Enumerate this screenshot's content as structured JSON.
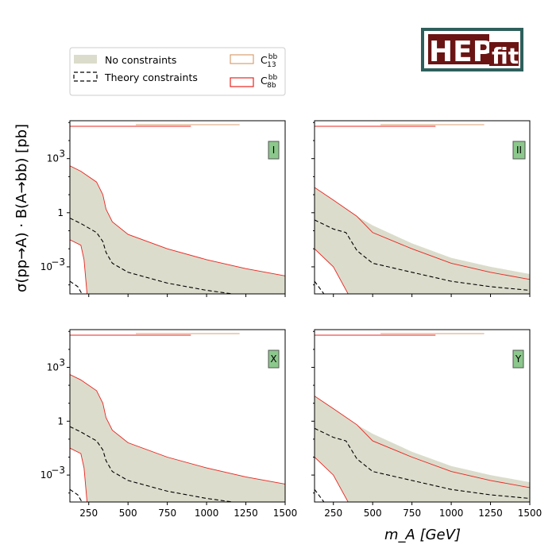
{
  "logo": {
    "part1": "HEP",
    "part2": "fit"
  },
  "legend": {
    "items": [
      {
        "key": "none",
        "label": "No constraints",
        "color": "#dcdccc"
      },
      {
        "key": "theory",
        "label": "Theory constraints",
        "color": "#000000"
      },
      {
        "key": "c13",
        "label": "C",
        "sup": "bb",
        "sub": "13",
        "color": "#d9a070"
      },
      {
        "key": "c8b",
        "label": "C",
        "sup": "bb",
        "sub": "8b",
        "color": "#e8251f"
      }
    ]
  },
  "chart_data": {
    "type": "area",
    "xlabel": "m_A [GeV]",
    "ylabel": "σ(pp→A) · B(A→bb) [pb]",
    "xlim": [
      130,
      1500
    ],
    "ylim_log10": [
      -4.5,
      5.1
    ],
    "xticks": [
      250,
      500,
      750,
      1000,
      1250,
      1500
    ],
    "yticks": [
      {
        "label": "10",
        "exp": "3",
        "log": 3
      },
      {
        "label": "1",
        "exp": "",
        "log": 0
      },
      {
        "label": "10",
        "exp": "−3",
        "log": -3
      }
    ],
    "colors": {
      "band": "#dcdccc",
      "theory": "#000000",
      "c13": "#d9a070",
      "c8b": "#e8251f",
      "badge": "#8cc88c"
    },
    "panels": [
      {
        "label": "I",
        "band_upper": [
          [
            130,
            2.6
          ],
          [
            200,
            2.3
          ],
          [
            300,
            1.7
          ],
          [
            340,
            1.0
          ],
          [
            360,
            0.2
          ],
          [
            400,
            -0.5
          ],
          [
            500,
            -1.2
          ],
          [
            750,
            -2.0
          ],
          [
            1000,
            -2.6
          ],
          [
            1250,
            -3.1
          ],
          [
            1500,
            -3.5
          ]
        ],
        "band_lower": [
          [
            130,
            -1.5
          ],
          [
            200,
            -1.8
          ],
          [
            220,
            -2.6
          ],
          [
            240,
            -4.6
          ]
        ],
        "theory_upper": [
          [
            130,
            -0.3
          ],
          [
            200,
            -0.6
          ],
          [
            300,
            -1.1
          ],
          [
            340,
            -1.6
          ],
          [
            360,
            -2.2
          ],
          [
            400,
            -2.8
          ],
          [
            500,
            -3.3
          ],
          [
            750,
            -3.9
          ],
          [
            1000,
            -4.3
          ],
          [
            1250,
            -4.6
          ],
          [
            1400,
            -5.2
          ],
          [
            1500,
            -5.4
          ]
        ],
        "theory_lower": [
          [
            130,
            -3.8
          ],
          [
            180,
            -4.1
          ],
          [
            220,
            -4.7
          ],
          [
            240,
            -5.3
          ],
          [
            260,
            -6.2
          ],
          [
            300,
            -6.8
          ]
        ],
        "c8b_upper": [
          [
            130,
            2.6
          ],
          [
            200,
            2.3
          ],
          [
            300,
            1.7
          ],
          [
            340,
            1.0
          ],
          [
            360,
            0.2
          ],
          [
            400,
            -0.5
          ],
          [
            500,
            -1.2
          ],
          [
            750,
            -2.0
          ],
          [
            1000,
            -2.6
          ],
          [
            1250,
            -3.1
          ],
          [
            1500,
            -3.5
          ]
        ],
        "c8b_lower": [
          [
            130,
            -1.5
          ],
          [
            200,
            -1.8
          ],
          [
            220,
            -2.6
          ],
          [
            240,
            -4.6
          ]
        ],
        "topbar_c8b": [
          130,
          900
        ],
        "topbar_c13": [
          550,
          1210
        ]
      },
      {
        "label": "II",
        "band_upper": [
          [
            130,
            1.4
          ],
          [
            250,
            0.7
          ],
          [
            400,
            -0.2
          ],
          [
            500,
            -0.7
          ],
          [
            750,
            -1.7
          ],
          [
            1000,
            -2.5
          ],
          [
            1250,
            -3.0
          ],
          [
            1500,
            -3.4
          ]
        ],
        "band_lower": [
          [
            130,
            -2.0
          ],
          [
            250,
            -3.0
          ],
          [
            350,
            -4.6
          ]
        ],
        "theory_upper": [
          [
            130,
            -0.4
          ],
          [
            250,
            -0.9
          ],
          [
            330,
            -1.1
          ],
          [
            400,
            -2.1
          ],
          [
            500,
            -2.8
          ],
          [
            750,
            -3.3
          ],
          [
            1000,
            -3.8
          ],
          [
            1250,
            -4.1
          ],
          [
            1500,
            -4.3
          ]
        ],
        "theory_lower": [
          [
            130,
            -3.8
          ],
          [
            250,
            -5.2
          ],
          [
            350,
            -7.0
          ]
        ],
        "c8b_upper": [
          [
            130,
            1.4
          ],
          [
            250,
            0.7
          ],
          [
            400,
            -0.2
          ],
          [
            500,
            -1.1
          ],
          [
            750,
            -2.0
          ],
          [
            1000,
            -2.8
          ],
          [
            1250,
            -3.3
          ],
          [
            1500,
            -3.7
          ]
        ],
        "c8b_lower": [
          [
            130,
            -2.0
          ],
          [
            250,
            -3.0
          ],
          [
            350,
            -4.6
          ]
        ],
        "topbar_c8b": [
          130,
          900
        ],
        "topbar_c13": [
          550,
          1210
        ]
      },
      {
        "label": "X",
        "band_upper": [
          [
            130,
            2.6
          ],
          [
            200,
            2.3
          ],
          [
            300,
            1.7
          ],
          [
            340,
            1.0
          ],
          [
            360,
            0.2
          ],
          [
            400,
            -0.5
          ],
          [
            500,
            -1.2
          ],
          [
            750,
            -2.0
          ],
          [
            1000,
            -2.6
          ],
          [
            1250,
            -3.1
          ],
          [
            1500,
            -3.5
          ]
        ],
        "band_lower": [
          [
            130,
            -1.5
          ],
          [
            200,
            -1.8
          ],
          [
            220,
            -2.6
          ],
          [
            240,
            -4.6
          ]
        ],
        "theory_upper": [
          [
            130,
            -0.3
          ],
          [
            200,
            -0.6
          ],
          [
            300,
            -1.1
          ],
          [
            340,
            -1.6
          ],
          [
            360,
            -2.2
          ],
          [
            400,
            -2.8
          ],
          [
            500,
            -3.3
          ],
          [
            750,
            -3.9
          ],
          [
            1000,
            -4.3
          ],
          [
            1250,
            -4.6
          ],
          [
            1400,
            -5.2
          ],
          [
            1500,
            -5.4
          ]
        ],
        "theory_lower": [
          [
            130,
            -3.8
          ],
          [
            180,
            -4.1
          ],
          [
            220,
            -4.7
          ],
          [
            240,
            -5.3
          ],
          [
            260,
            -6.2
          ],
          [
            300,
            -6.8
          ]
        ],
        "c8b_upper": [
          [
            130,
            2.6
          ],
          [
            200,
            2.3
          ],
          [
            300,
            1.7
          ],
          [
            340,
            1.0
          ],
          [
            360,
            0.2
          ],
          [
            400,
            -0.5
          ],
          [
            500,
            -1.2
          ],
          [
            750,
            -2.0
          ],
          [
            1000,
            -2.6
          ],
          [
            1250,
            -3.1
          ],
          [
            1500,
            -3.5
          ]
        ],
        "c8b_lower": [
          [
            130,
            -1.5
          ],
          [
            200,
            -1.8
          ],
          [
            220,
            -2.6
          ],
          [
            240,
            -4.6
          ]
        ],
        "topbar_c8b": [
          130,
          900
        ],
        "topbar_c13": [
          550,
          1210
        ]
      },
      {
        "label": "Y",
        "band_upper": [
          [
            130,
            1.4
          ],
          [
            250,
            0.7
          ],
          [
            400,
            -0.2
          ],
          [
            500,
            -0.7
          ],
          [
            750,
            -1.7
          ],
          [
            1000,
            -2.5
          ],
          [
            1250,
            -3.0
          ],
          [
            1500,
            -3.4
          ]
        ],
        "band_lower": [
          [
            130,
            -2.0
          ],
          [
            250,
            -3.0
          ],
          [
            350,
            -4.6
          ]
        ],
        "theory_upper": [
          [
            130,
            -0.4
          ],
          [
            250,
            -0.9
          ],
          [
            330,
            -1.1
          ],
          [
            400,
            -2.1
          ],
          [
            500,
            -2.8
          ],
          [
            750,
            -3.3
          ],
          [
            1000,
            -3.8
          ],
          [
            1250,
            -4.1
          ],
          [
            1500,
            -4.3
          ]
        ],
        "theory_lower": [
          [
            130,
            -3.8
          ],
          [
            250,
            -5.2
          ],
          [
            350,
            -7.0
          ]
        ],
        "c8b_upper": [
          [
            130,
            1.4
          ],
          [
            250,
            0.7
          ],
          [
            400,
            -0.2
          ],
          [
            500,
            -1.1
          ],
          [
            750,
            -2.0
          ],
          [
            1000,
            -2.8
          ],
          [
            1250,
            -3.3
          ],
          [
            1500,
            -3.7
          ]
        ],
        "c8b_lower": [
          [
            130,
            -2.0
          ],
          [
            250,
            -3.0
          ],
          [
            350,
            -4.6
          ]
        ],
        "topbar_c8b": [
          130,
          900
        ],
        "topbar_c13": [
          550,
          1210
        ]
      }
    ]
  }
}
